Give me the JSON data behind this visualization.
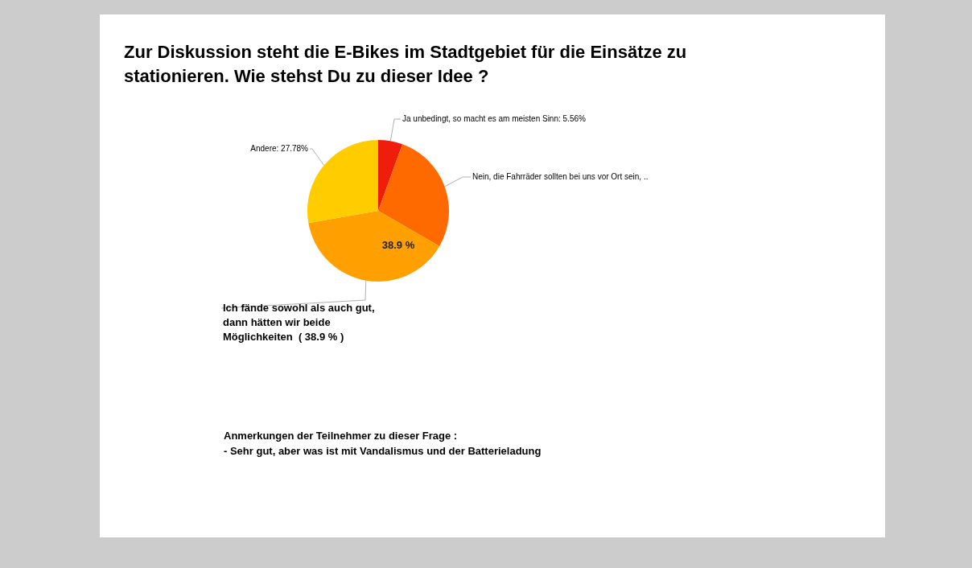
{
  "chart_data": {
    "type": "pie",
    "title": "Zur Diskussion steht die E-Bikes im Stadtgebiet für die Einsätze zu stationieren. Wie stehst Du zu dieser Idee ?",
    "categories": [
      "Ja unbedingt, so macht es am meisten Sinn: 5.56%",
      "Nein, die Fahrräder sollten bei uns vor Ort sein, ..",
      "Ich fände sowohl als auch gut, dann hätten wir beide Möglichkeiten  ( 38.9 % )",
      "Andere: 27.78%"
    ],
    "values": [
      5.56,
      27.76,
      38.9,
      27.78
    ],
    "colors": [
      "#ee1d0c",
      "#ff6a00",
      "#ffa000",
      "#ffcc00"
    ],
    "value_labels": [
      null,
      null,
      "38.9 %",
      null
    ],
    "annotations": [
      "Anmerkungen der Teilnehmer zu dieser Frage :",
      "- Sehr gut, aber was ist mit Vandalismus und der Batterieladung"
    ]
  }
}
